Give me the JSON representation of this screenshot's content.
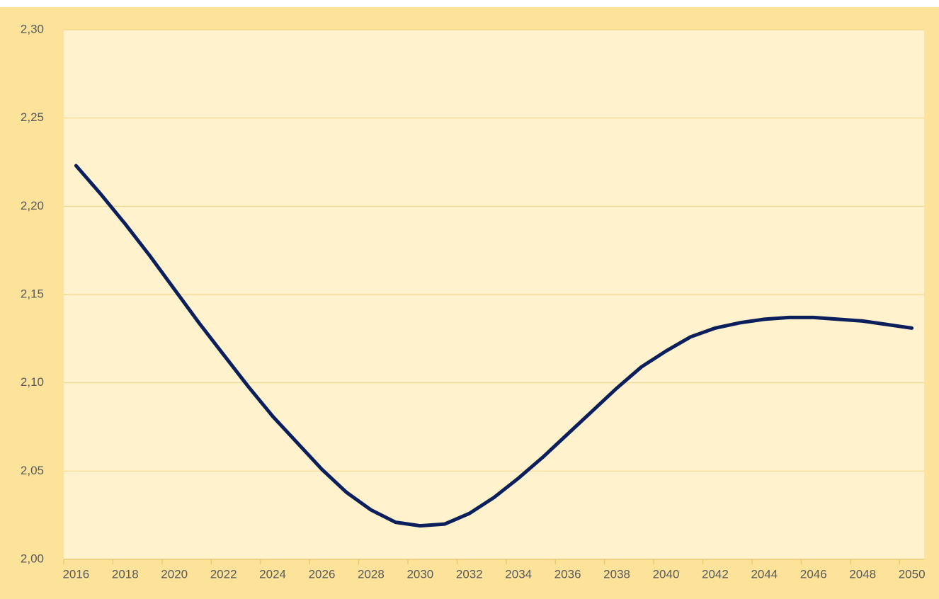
{
  "chart_data": {
    "type": "line",
    "categories": [
      "2016",
      null,
      "2018",
      null,
      "2020",
      null,
      "2022",
      null,
      "2024",
      null,
      "2026",
      null,
      "2028",
      null,
      "2030",
      null,
      "2032",
      null,
      "2034",
      null,
      "2036",
      null,
      "2038",
      null,
      "2040",
      null,
      "2042",
      null,
      "2044",
      null,
      "2046",
      null,
      "2048",
      null,
      "2050"
    ],
    "series": [
      {
        "color": "#0b1f5c",
        "values": [
          2.223,
          2.207,
          2.19,
          2.172,
          2.153,
          2.134,
          2.116,
          2.098,
          2.081,
          2.066,
          2.051,
          2.038,
          2.028,
          2.021,
          2.019,
          2.02,
          2.026,
          2.035,
          2.046,
          2.058,
          2.071,
          2.084,
          2.097,
          2.109,
          2.118,
          2.126,
          2.131,
          2.134,
          2.136,
          2.137,
          2.137,
          2.136,
          2.135,
          2.133,
          2.131
        ]
      }
    ],
    "ylim": [
      2.0,
      2.3
    ],
    "yticks": [
      {
        "value": 2.0,
        "label": "2,00"
      },
      {
        "value": 2.05,
        "label": "2,05"
      },
      {
        "value": 2.1,
        "label": "2,10"
      },
      {
        "value": 2.15,
        "label": "2,15"
      },
      {
        "value": 2.2,
        "label": "2,20"
      },
      {
        "value": 2.25,
        "label": "2,25"
      },
      {
        "value": 2.3,
        "label": "2,30"
      }
    ],
    "grid": true
  }
}
